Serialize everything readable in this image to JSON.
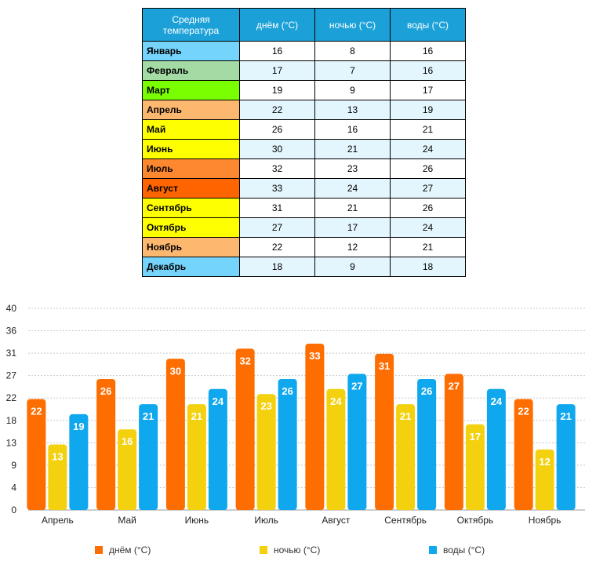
{
  "table": {
    "headers": [
      "Средняя температура",
      "днём (°C)",
      "ночью (°C)",
      "воды (°C)"
    ],
    "rows": [
      {
        "month": "Январь",
        "day": "16",
        "night": "8",
        "water": "16",
        "color": "#75d4fb"
      },
      {
        "month": "Февраль",
        "day": "17",
        "night": "7",
        "water": "16",
        "color": "#a4dba5"
      },
      {
        "month": "Март",
        "day": "19",
        "night": "9",
        "water": "17",
        "color": "#79ff00"
      },
      {
        "month": "Апрель",
        "day": "22",
        "night": "13",
        "water": "19",
        "color": "#fdb870"
      },
      {
        "month": "Май",
        "day": "26",
        "night": "16",
        "water": "21",
        "color": "#feff00"
      },
      {
        "month": "Июнь",
        "day": "30",
        "night": "21",
        "water": "24",
        "color": "#feff00"
      },
      {
        "month": "Июль",
        "day": "32",
        "night": "23",
        "water": "26",
        "color": "#fe8830"
      },
      {
        "month": "Август",
        "day": "33",
        "night": "24",
        "water": "27",
        "color": "#fe6500"
      },
      {
        "month": "Сентябрь",
        "day": "31",
        "night": "21",
        "water": "26",
        "color": "#feff00"
      },
      {
        "month": "Октябрь",
        "day": "27",
        "night": "17",
        "water": "24",
        "color": "#feff00"
      },
      {
        "month": "Ноябрь",
        "day": "22",
        "night": "12",
        "water": "21",
        "color": "#fdb870"
      },
      {
        "month": "Декабрь",
        "day": "18",
        "night": "9",
        "water": "18",
        "color": "#75d4fb"
      }
    ]
  },
  "chart_data": {
    "type": "bar",
    "categories": [
      "Апрель",
      "Май",
      "Июнь",
      "Июль",
      "Август",
      "Сентябрь",
      "Октябрь",
      "Ноябрь"
    ],
    "series": [
      {
        "name": "днём (°C)",
        "color": "#fe6d00",
        "values": [
          22,
          26,
          30,
          32,
          33,
          31,
          27,
          22
        ]
      },
      {
        "name": "ночью (°C)",
        "color": "#f4d10e",
        "values": [
          13,
          16,
          21,
          23,
          24,
          21,
          17,
          12
        ]
      },
      {
        "name": "воды (°C)",
        "color": "#0fa7ee",
        "values": [
          19,
          21,
          24,
          26,
          27,
          26,
          24,
          21
        ]
      }
    ],
    "ylim": [
      0,
      40
    ],
    "yticks": [
      "0",
      "4",
      "9",
      "13",
      "18",
      "22",
      "27",
      "31",
      "36",
      "40"
    ],
    "grid": true,
    "legend_position": "bottom",
    "title": "",
    "xlabel": "",
    "ylabel": ""
  }
}
